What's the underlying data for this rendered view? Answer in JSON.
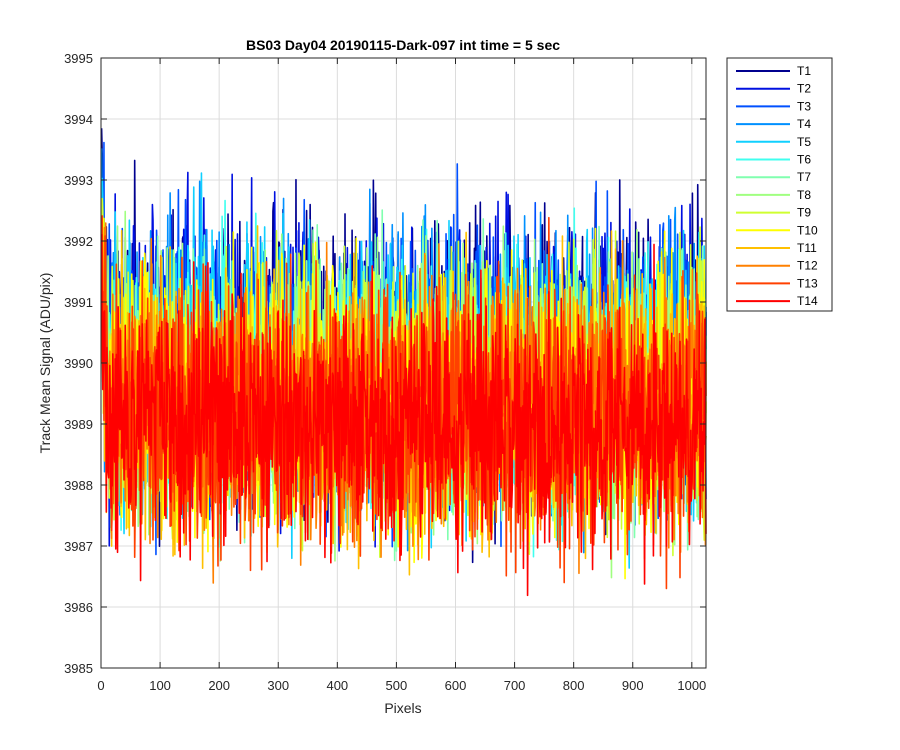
{
  "chart_data": {
    "type": "line",
    "title": "BS03 Day04 20190115-Dark-097 int time = 5 sec",
    "xlabel": "Pixels",
    "ylabel": "Track Mean Signal (ADU/pix)",
    "xlim": [
      0,
      1024
    ],
    "ylim": [
      3985,
      3995
    ],
    "xticks": [
      0,
      100,
      200,
      300,
      400,
      500,
      600,
      700,
      800,
      900,
      1000
    ],
    "yticks": [
      3985,
      3986,
      3987,
      3988,
      3989,
      3990,
      3991,
      3992,
      3993,
      3994,
      3995
    ],
    "grid": true,
    "legend_position": "outside-top-right",
    "series": [
      {
        "name": "T1",
        "color": "#00008f",
        "mean": 3990.2,
        "spread": 1.15
      },
      {
        "name": "T2",
        "color": "#0010e0",
        "mean": 3990.1,
        "spread": 1.15
      },
      {
        "name": "T3",
        "color": "#0050ff",
        "mean": 3990.0,
        "spread": 1.1
      },
      {
        "name": "T4",
        "color": "#0090ff",
        "mean": 3989.9,
        "spread": 1.1
      },
      {
        "name": "T5",
        "color": "#10d0ff",
        "mean": 3989.8,
        "spread": 1.1
      },
      {
        "name": "T6",
        "color": "#40ffef",
        "mean": 3989.7,
        "spread": 1.05
      },
      {
        "name": "T7",
        "color": "#80ffaf",
        "mean": 3989.6,
        "spread": 1.05
      },
      {
        "name": "T8",
        "color": "#a0ff80",
        "mean": 3989.55,
        "spread": 1.05
      },
      {
        "name": "T9",
        "color": "#cfff30",
        "mean": 3989.5,
        "spread": 1.05
      },
      {
        "name": "T10",
        "color": "#ffff00",
        "mean": 3989.4,
        "spread": 1.05
      },
      {
        "name": "T11",
        "color": "#ffc000",
        "mean": 3989.3,
        "spread": 1.05
      },
      {
        "name": "T12",
        "color": "#ff8000",
        "mean": 3989.2,
        "spread": 1.05
      },
      {
        "name": "T13",
        "color": "#ff4000",
        "mean": 3989.1,
        "spread": 1.05
      },
      {
        "name": "T14",
        "color": "#ff0000",
        "mean": 3989.0,
        "spread": 1.0
      }
    ]
  }
}
